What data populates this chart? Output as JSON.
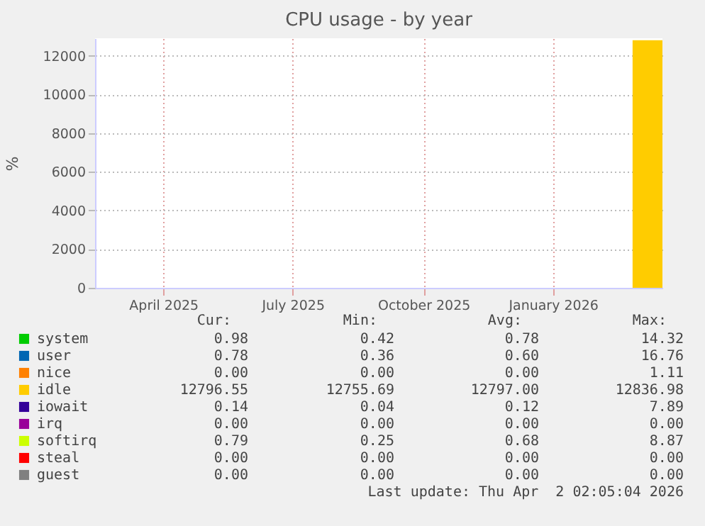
{
  "chart_data": {
    "type": "area",
    "title": "CPU usage - by year",
    "ylabel": "%",
    "stacked": true,
    "grid": true,
    "legend": "bottom",
    "x": [
      "2026-03-12",
      "2026-03-19",
      "2026-03-26",
      "2026-04-02"
    ],
    "xlim": [
      "2025-02-27",
      "2026-04-02"
    ],
    "xticks": [
      {
        "value": "2025-04-16",
        "label": "April 2025"
      },
      {
        "value": "2025-07-16",
        "label": "July 2025"
      },
      {
        "value": "2025-10-16",
        "label": "October 2025"
      },
      {
        "value": "2026-01-15",
        "label": "January 2026"
      }
    ],
    "ylim": [
      0,
      12900
    ],
    "yticks": [
      0,
      2000,
      4000,
      6000,
      8000,
      10000,
      12000
    ],
    "series": [
      {
        "name": "system",
        "color": "#00cc00",
        "values": [
          null,
          null,
          null,
          null
        ]
      },
      {
        "name": "user",
        "color": "#0066b3",
        "values": [
          null,
          null,
          null,
          null
        ]
      },
      {
        "name": "nice",
        "color": "#ff8000",
        "values": [
          null,
          null,
          null,
          null
        ]
      },
      {
        "name": "idle",
        "color": "#ffcc00",
        "values": [
          12800,
          12800,
          12800,
          12800
        ]
      },
      {
        "name": "iowait",
        "color": "#330099",
        "values": [
          null,
          null,
          null,
          null
        ]
      },
      {
        "name": "irq",
        "color": "#990099",
        "values": [
          null,
          null,
          null,
          null
        ]
      },
      {
        "name": "softirq",
        "color": "#ccff00",
        "values": [
          null,
          null,
          null,
          null
        ]
      },
      {
        "name": "steal",
        "color": "#ff0000",
        "values": [
          null,
          null,
          null,
          null
        ]
      },
      {
        "name": "guest",
        "color": "#808080",
        "values": [
          null,
          null,
          null,
          null
        ]
      }
    ],
    "annotations": [
      "Cur:",
      "Min:",
      "Avg:",
      "Max:",
      "0.98",
      "0.42",
      "0.78",
      "14.32",
      "0.78",
      "0.36",
      "0.60",
      "16.76",
      "0.00",
      "0.00",
      "0.00",
      "1.11",
      "12796.55",
      "12755.69",
      "12797.00",
      "12836.98",
      "0.14",
      "0.04",
      "0.12",
      "7.89",
      "0.00",
      "0.00",
      "0.00",
      "0.00",
      "0.79",
      "0.25",
      "0.68",
      "8.87",
      "0.00",
      "0.00",
      "0.00",
      "0.00",
      "0.00",
      "0.00",
      "0.00",
      "0.00",
      "Last update: Thu Apr  2 02:05:04 2026"
    ]
  }
}
